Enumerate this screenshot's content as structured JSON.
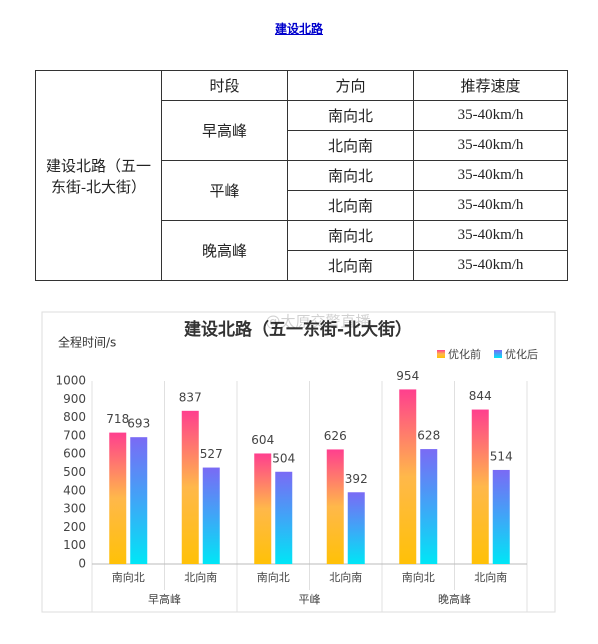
{
  "header": {
    "title": "建设北路"
  },
  "table": {
    "header": [
      "时段",
      "方向",
      "推荐速度"
    ],
    "road": "建设北路（五一东街-北大街）",
    "rows": [
      {
        "period": "早高峰",
        "entries": [
          [
            "南向北",
            "35-40km/h"
          ],
          [
            "北向南",
            "35-40km/h"
          ]
        ]
      },
      {
        "period": "平峰",
        "entries": [
          [
            "南向北",
            "35-40km/h"
          ],
          [
            "北向南",
            "35-40km/h"
          ]
        ]
      },
      {
        "period": "晚高峰",
        "entries": [
          [
            "南向北",
            "35-40km/h"
          ],
          [
            "北向南",
            "35-40km/h"
          ]
        ]
      }
    ]
  },
  "chart_data": {
    "type": "bar",
    "title": "建设北路（五一东街-北大街）",
    "y_label": "全程时间/s",
    "watermark": "@太原交警直播",
    "categories": [
      "南向北",
      "北向南",
      "南向北",
      "北向南",
      "南向北",
      "北向南"
    ],
    "category_groups": [
      "早高峰",
      "平峰",
      "晚高峰"
    ],
    "series": [
      {
        "name": "优化前",
        "color": "#ff4f8b",
        "gradient": [
          "#ff3f8e",
          "#ffb84a",
          "#ffc107"
        ],
        "values": [
          718,
          837,
          604,
          626,
          954,
          844
        ]
      },
      {
        "name": "优化后",
        "color": "#6f74f5",
        "gradient": [
          "#7a6af5",
          "#3fa6f7",
          "#00e6f6"
        ],
        "values": [
          693,
          527,
          504,
          392,
          628,
          514
        ]
      }
    ],
    "ylim": [
      0,
      1000
    ],
    "yticks": [
      0,
      100,
      200,
      300,
      400,
      500,
      600,
      700,
      800,
      900,
      1000
    ],
    "legend": "top-right",
    "grid": false
  }
}
